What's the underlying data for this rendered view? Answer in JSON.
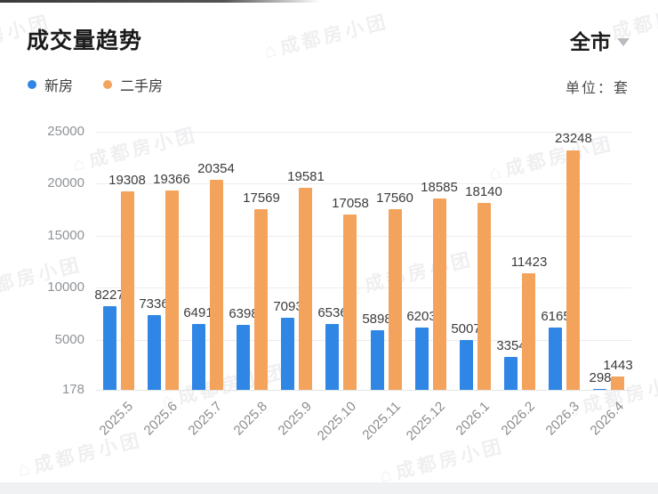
{
  "header": {
    "title": "成交量趋势",
    "region": {
      "label": "全市"
    },
    "unit_label": "单位：套"
  },
  "legend": [
    {
      "key": "new",
      "label": "新房",
      "color": "#2F86E4"
    },
    {
      "key": "secondhand",
      "label": "二手房",
      "color": "#F3A35C"
    }
  ],
  "watermark": {
    "text": "成都房小团",
    "house_glyph": "⌂"
  },
  "chart_data": {
    "type": "bar",
    "title": "成交量趋势",
    "unit": "套",
    "categories": [
      "2025.5",
      "2025.6",
      "2025.7",
      "2025.8",
      "2025.9",
      "2025.10",
      "2025.11",
      "2025.12",
      "2026.1",
      "2026.2",
      "2026.3",
      "2026.4"
    ],
    "series": [
      {
        "name": "新房",
        "key": "new",
        "color": "#2F86E4",
        "values": [
          8227,
          7336,
          6491,
          6398,
          7093,
          6536,
          5898,
          6203,
          5007,
          3354,
          6165,
          298
        ]
      },
      {
        "name": "二手房",
        "key": "secondhand",
        "color": "#F3A35C",
        "values": [
          19308,
          19366,
          20354,
          17569,
          19581,
          17058,
          17560,
          18585,
          18140,
          11423,
          23248,
          1443
        ]
      }
    ],
    "yticks": [
      178,
      5000,
      10000,
      15000,
      20000,
      25000
    ],
    "ylim": [
      178,
      25000
    ],
    "grid": true,
    "legend_position": "top-left",
    "value_labels": true
  }
}
